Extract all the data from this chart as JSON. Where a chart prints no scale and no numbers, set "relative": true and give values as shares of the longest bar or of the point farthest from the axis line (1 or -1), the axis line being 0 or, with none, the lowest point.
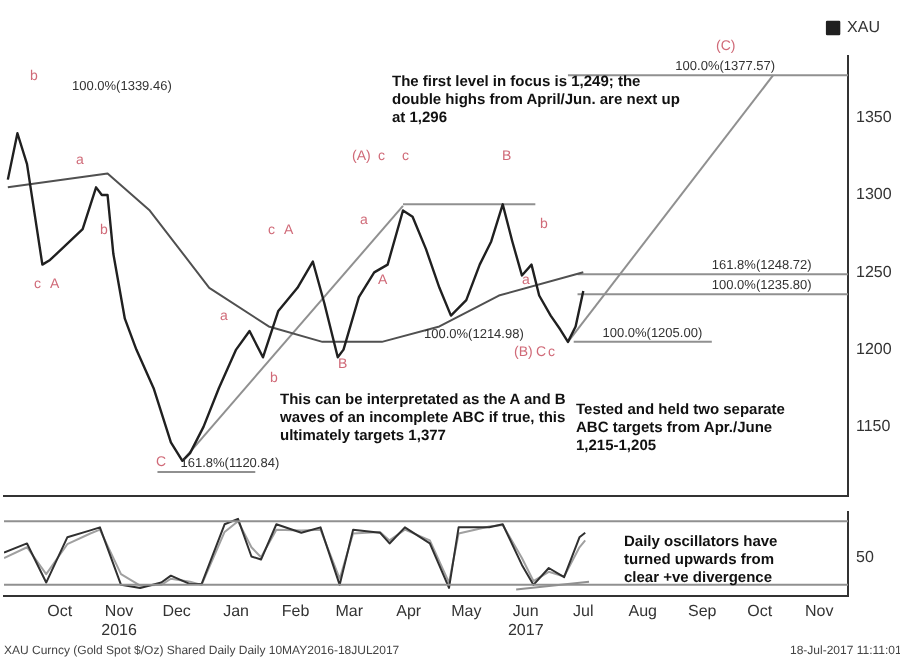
{
  "chart_data": [
    {
      "type": "line",
      "xlim": [
        "2016-09-16",
        "2017-11-30"
      ],
      "ylim": [
        1105,
        1390
      ],
      "yticks": [
        1150,
        1200,
        1250,
        1300,
        1350
      ],
      "tick_labels": "y",
      "grid": false,
      "legend": "top right",
      "marker": "none",
      "line_style": "solid",
      "series": [
        {
          "name": "XAU",
          "color": "#202020",
          "x": [
            "2016-09-18",
            "2016-09-23",
            "2016-09-28",
            "2016-10-06",
            "2016-10-10",
            "2016-10-16",
            "2016-10-27",
            "2016-11-03",
            "2016-11-06",
            "2016-11-09",
            "2016-11-12",
            "2016-11-18",
            "2016-11-24",
            "2016-12-03",
            "2016-12-12",
            "2016-12-18",
            "2016-12-22",
            "2016-12-29",
            "2017-01-06",
            "2017-01-15",
            "2017-01-22",
            "2017-01-29",
            "2017-02-06",
            "2017-02-16",
            "2017-02-24",
            "2017-03-02",
            "2017-03-09",
            "2017-03-12",
            "2017-03-20",
            "2017-03-28",
            "2017-04-04",
            "2017-04-12",
            "2017-04-17",
            "2017-04-24",
            "2017-05-01",
            "2017-05-07",
            "2017-05-15",
            "2017-05-22",
            "2017-05-28",
            "2017-06-03",
            "2017-06-08",
            "2017-06-13",
            "2017-06-18",
            "2017-06-22",
            "2017-06-28",
            "2017-07-03",
            "2017-07-07",
            "2017-07-11",
            "2017-07-15"
          ],
          "values": [
            1310,
            1340,
            1320,
            1255,
            1258,
            1265,
            1278,
            1305,
            1300,
            1300,
            1262,
            1220,
            1200,
            1175,
            1140,
            1128,
            1133,
            1150,
            1175,
            1200,
            1212,
            1195,
            1225,
            1240,
            1257,
            1230,
            1195,
            1200,
            1234,
            1250,
            1255,
            1290,
            1286,
            1265,
            1240,
            1222,
            1232,
            1255,
            1270,
            1294,
            1270,
            1248,
            1255,
            1235,
            1222,
            1213,
            1205,
            1215,
            1238
          ]
        },
        {
          "color": "#505050",
          "x": [
            "2016-09-18",
            "2016-11-09",
            "2016-12-01",
            "2017-01-01",
            "2017-02-01",
            "2017-03-01",
            "2017-04-01",
            "2017-05-01",
            "2017-06-01",
            "2017-07-15"
          ],
          "values": [
            1305,
            1314,
            1290,
            1240,
            1215,
            1205,
            1205,
            1215,
            1235,
            1250
          ]
        },
        {
          "color": "#909090",
          "x": [
            "2017-07-07",
            "2017-10-22"
          ],
          "values": [
            1205,
            1377.57
          ]
        },
        {
          "color": "#909090",
          "x": [
            "2016-12-18",
            "2017-04-12"
          ],
          "values": [
            1128,
            1293
          ]
        },
        {
          "color": "#909090",
          "x": [
            "2017-07-07",
            "2017-11-30"
          ],
          "values": [
            1377.57,
            1377.57
          ]
        },
        {
          "color": "#909090",
          "x": [
            "2017-07-12",
            "2017-11-30"
          ],
          "values": [
            1248.72,
            1248.72
          ]
        },
        {
          "color": "#909090",
          "x": [
            "2017-07-12",
            "2017-11-30"
          ],
          "values": [
            1235.8,
            1235.8
          ]
        },
        {
          "color": "#909090",
          "x": [
            "2017-07-10",
            "2017-09-20"
          ],
          "values": [
            1205,
            1205
          ]
        },
        {
          "color": "#909090",
          "x": [
            "2017-04-12",
            "2017-06-20"
          ],
          "values": [
            1294,
            1294
          ]
        },
        {
          "color": "#909090",
          "x": [
            "2016-12-05",
            "2017-01-25"
          ],
          "values": [
            1120.84,
            1120.84
          ]
        }
      ],
      "annotations": [
        "The first level in focus is 1,249; the double highs from April/Jun. are next up at 1,296",
        "This can be interpretated as the A and B waves of an incomplete ABC if true, this ultimately targets 1,377",
        "Tested and held two separate ABC targets from Apr./June 1,215-1,205",
        "100.0%(1339.46)",
        {
          "text": "100.0%(1377.57)",
          "x": "2017-09-01",
          "y": 1377.57
        },
        {
          "text": "161.8%(1248.72)",
          "x": "2017-09-20",
          "y": 1248.72
        },
        {
          "text": "100.0%(1235.80)",
          "x": "2017-09-20",
          "y": 1235.8
        },
        "100.0%(1214.98)",
        {
          "text": "100.0%(1205.00)",
          "x": "2017-07-25",
          "y": 1205
        },
        {
          "text": "161.8%(1120.84)",
          "x": "2016-12-17",
          "y": 1120.84
        },
        "b",
        "c",
        "A",
        "a",
        "b",
        "C",
        "a",
        "b",
        "c",
        "A",
        "B",
        "a",
        "A",
        "(A)",
        "c",
        "c",
        "B",
        "a",
        "b",
        "(B)",
        "C",
        "c",
        "(C)"
      ]
    },
    {
      "type": "line",
      "xlim": [
        "2016-09-16",
        "2017-11-30"
      ],
      "relative": true,
      "grid": false,
      "marker": "none",
      "line_style": "solid",
      "xticks": [
        {
          "value": "2016-10-15",
          "label": "Oct"
        },
        {
          "value": "2016-11-15",
          "label": "Nov\n2016"
        },
        {
          "value": "2016-12-15",
          "label": "Dec"
        },
        {
          "value": "2017-01-15",
          "label": "Jan"
        },
        {
          "value": "2017-02-15",
          "label": "Feb"
        },
        {
          "value": "2017-03-15",
          "label": "Mar"
        },
        {
          "value": "2017-04-15",
          "label": "Apr"
        },
        {
          "value": "2017-05-15",
          "label": "May"
        },
        {
          "value": "2017-06-15",
          "label": "Jun\n2017"
        },
        {
          "value": "2017-07-15",
          "label": "Jul"
        },
        {
          "value": "2017-08-15",
          "label": "Aug"
        },
        {
          "value": "2017-09-15",
          "label": "Sep"
        },
        {
          "value": "2017-10-15",
          "label": "Oct"
        },
        {
          "value": "2017-11-15",
          "label": "Nov"
        }
      ],
      "x": [
        "2016-09-16",
        "2016-09-28",
        "2016-10-08",
        "2016-10-19",
        "2016-10-31",
        "2016-11-05",
        "2016-11-16",
        "2016-11-26",
        "2016-12-07",
        "2016-12-12",
        "2016-12-22",
        "2016-12-28",
        "2017-01-09",
        "2017-01-16",
        "2017-01-23",
        "2017-01-28",
        "2017-02-05",
        "2017-02-18",
        "2017-02-28",
        "2017-03-10",
        "2017-03-17",
        "2017-03-31",
        "2017-04-05",
        "2017-04-13",
        "2017-04-26",
        "2017-05-06",
        "2017-05-11",
        "2017-05-27",
        "2017-06-03",
        "2017-06-13",
        "2017-06-19",
        "2017-06-27",
        "2017-07-05",
        "2017-07-13",
        "2017-07-16"
      ],
      "series": [
        {
          "color": "#303030",
          "values": [
            0.56,
            0.68,
            0.17,
            0.76,
            0.85,
            0.89,
            0.14,
            0.1,
            0.17,
            0.26,
            0.15,
            0.15,
            0.93,
            1,
            0.51,
            0.47,
            0.93,
            0.82,
            0.89,
            0.14,
            0.86,
            0.82,
            0.68,
            0.89,
            0.68,
            0.1,
            0.89,
            0.89,
            0.93,
            0.4,
            0.14,
            0.36,
            0.24,
            0.76,
            0.82
          ]
        },
        {
          "color": "#a0a0a0",
          "values": [
            0.49,
            0.63,
            0.28,
            0.67,
            0.81,
            0.86,
            0.28,
            0.13,
            0.14,
            0.22,
            0.18,
            0.14,
            0.83,
            0.97,
            0.63,
            0.5,
            0.86,
            0.85,
            0.86,
            0.22,
            0.81,
            0.83,
            0.72,
            0.86,
            0.72,
            0.17,
            0.81,
            0.9,
            0.92,
            0.49,
            0.19,
            0.31,
            0.25,
            0.63,
            0.72
          ]
        },
        {
          "color": "#909090",
          "x": [
            "2017-06-10",
            "2017-07-18"
          ],
          "values": [
            0.08,
            0.18
          ]
        }
      ],
      "ref_lines": [
        {
          "axis": "y",
          "value": 0.97,
          "color": "#909090"
        },
        {
          "axis": "y",
          "value": 0.14,
          "color": "#909090"
        }
      ],
      "annotations": [
        "Daily oscillators have turned upwards from clear +ve divergence",
        "XAU Curncy (Gold Spot $/Oz) Shared Daily   Daily 10MAY2016-18JUL2017",
        "18-Jul-2017 11:11:01",
        "50"
      ]
    }
  ]
}
